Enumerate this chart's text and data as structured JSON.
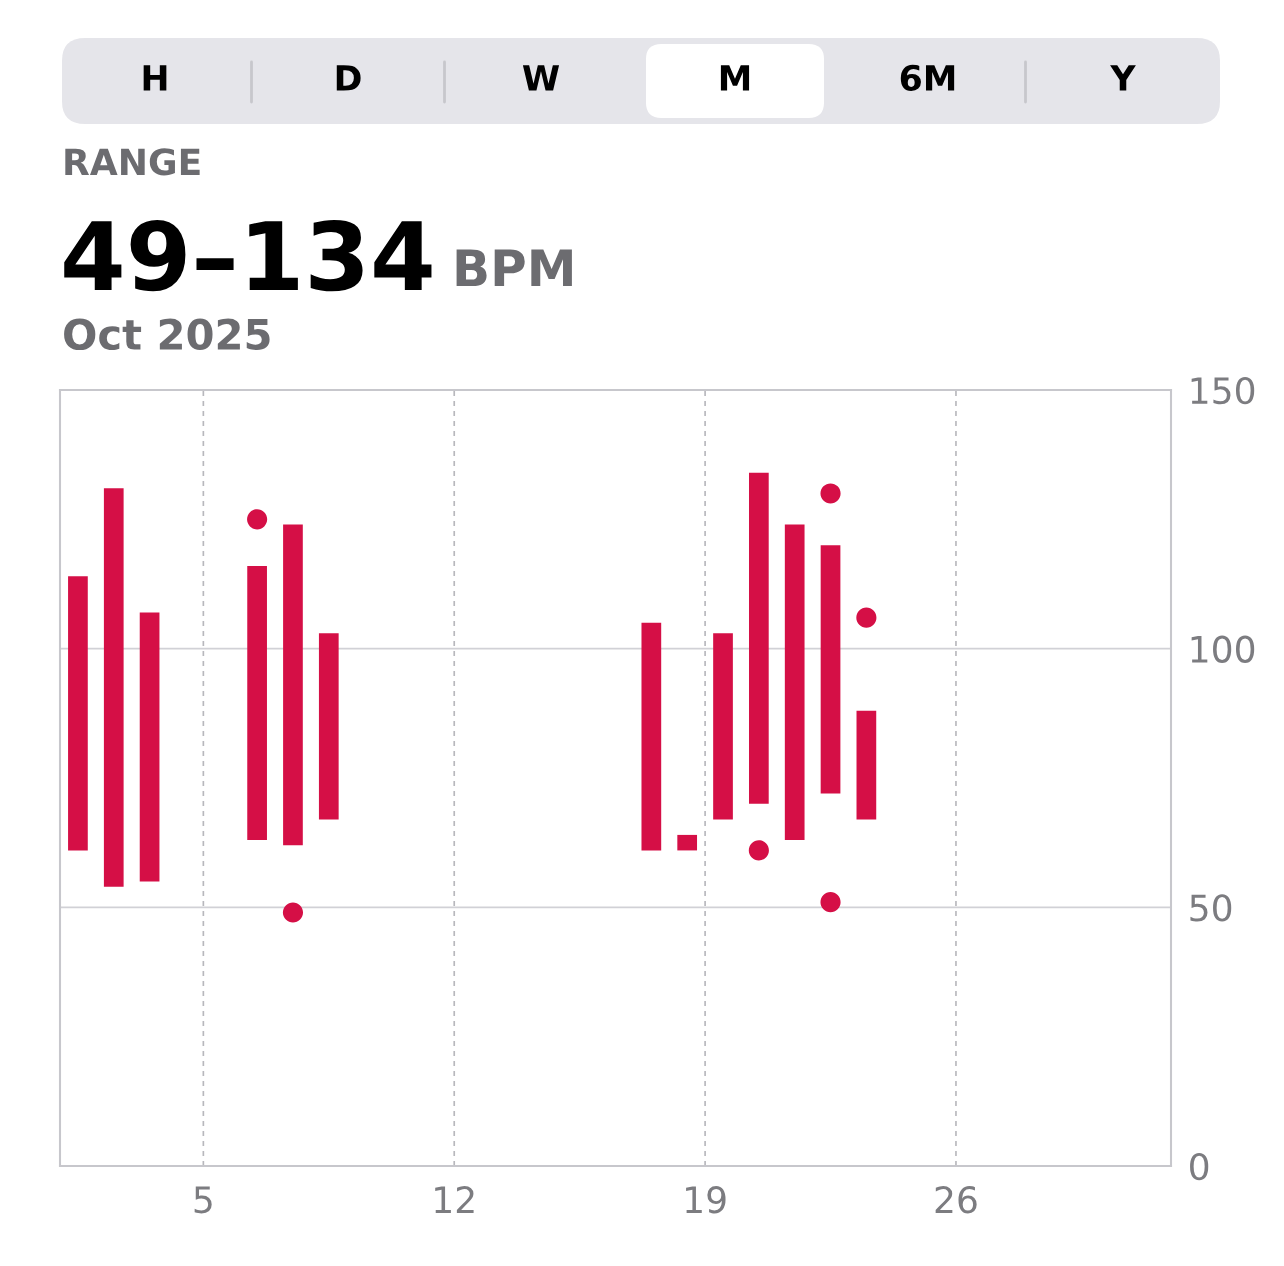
{
  "chart_data": {
    "type": "bar",
    "title": "49–134",
    "subtitle": "Oct 2025",
    "annotations": [
      "RANGE",
      "BPM",
      "H",
      "D",
      "W",
      "M",
      "6M",
      "Y"
    ],
    "x": [
      1,
      2,
      3,
      6,
      7,
      8,
      17,
      18,
      19,
      20,
      21,
      22,
      23
    ],
    "series": [
      {
        "color": "#d50f46",
        "base": [
          61,
          54,
          55,
          63,
          62,
          67,
          61,
          61,
          67,
          70,
          63,
          72,
          67
        ],
        "values": [
          53,
          77,
          52,
          53,
          62,
          36,
          44,
          3,
          36,
          64,
          61,
          48,
          21
        ]
      },
      {
        "type": "scatter",
        "color": "#d50f46",
        "x": [
          6,
          7,
          20,
          22,
          22,
          23
        ],
        "values": [
          125,
          49,
          61,
          130,
          51,
          106
        ]
      }
    ],
    "xlim": [
      0.5,
      31.5
    ],
    "xticks": [
      {
        "value": 4.5,
        "label": "5"
      },
      {
        "value": 11.5,
        "label": "12"
      },
      {
        "value": 18.5,
        "label": "19"
      },
      {
        "value": 25.5,
        "label": "26"
      }
    ],
    "ylim": [
      0,
      150
    ],
    "yticks": [
      0,
      50,
      100,
      150
    ],
    "grid": true,
    "legend": false
  }
}
